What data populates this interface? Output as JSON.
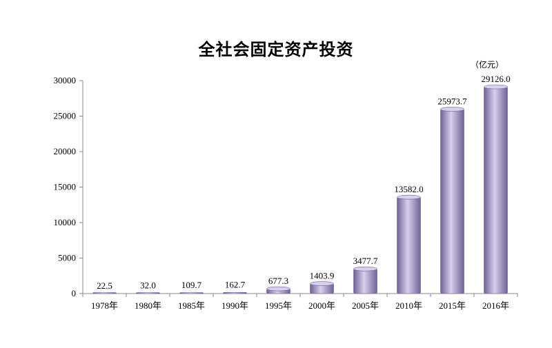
{
  "chart_data": {
    "type": "bar",
    "title": "全社会固定资产投资",
    "unit": "（亿元）",
    "categories": [
      "1978年",
      "1980年",
      "1985年",
      "1990年",
      "1995年",
      "2000年",
      "2005年",
      "2010年",
      "2015年",
      "2016年"
    ],
    "values": [
      22.5,
      32.0,
      109.7,
      162.7,
      677.3,
      1403.9,
      3477.7,
      13582.0,
      25973.7,
      29126.0
    ],
    "value_labels": [
      "22.5",
      "32.0",
      "109.7",
      "162.7",
      "677.3",
      "1403.9",
      "3477.7",
      "13582.0",
      "25973.7",
      "29126.0"
    ],
    "ylim": [
      0,
      30000
    ],
    "yticks": [
      0,
      5000,
      10000,
      15000,
      20000,
      25000,
      30000
    ],
    "xlabel": "",
    "ylabel": "",
    "grid": false,
    "bar_color": "#a99cc8",
    "bar_color_dark": "#6f6196",
    "bar_color_light": "#d8d0ec"
  }
}
